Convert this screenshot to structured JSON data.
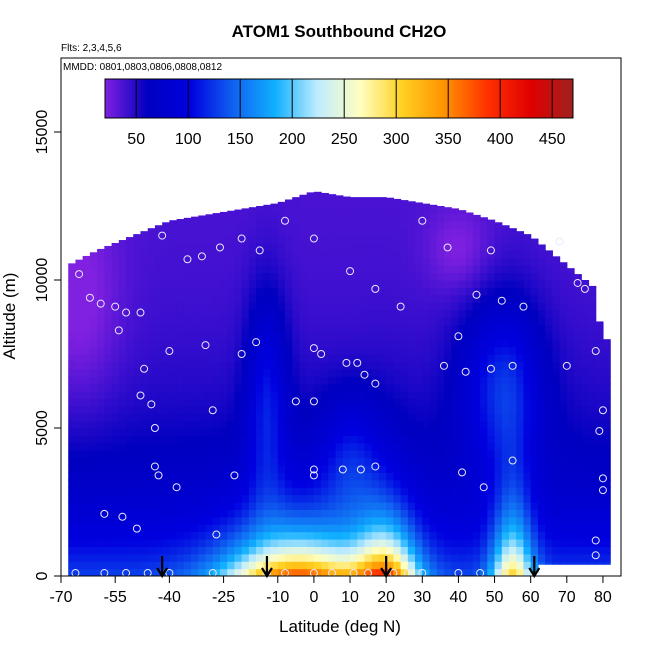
{
  "chart_data": {
    "type": "heatmap",
    "title": "ATOM1 Southbound CH2O",
    "flights_note": "Flts: 2,3,4,5,6",
    "dates_note": "MMDD: 0801,0803,0806,0808,0812",
    "xlabel": "Latitude (deg N)",
    "ylabel": "Altitude (m)",
    "xlim": [
      -70,
      85
    ],
    "ylim": [
      0,
      17500
    ],
    "x_ticks": [
      -70,
      -55,
      -40,
      -25,
      -10,
      0,
      10,
      20,
      30,
      40,
      50,
      60,
      70,
      80
    ],
    "y_ticks": [
      0,
      5000,
      10000,
      15000
    ],
    "colorbar": {
      "range": [
        20,
        470
      ],
      "ticks": [
        50,
        100,
        150,
        200,
        250,
        300,
        350,
        400,
        450
      ],
      "colors": [
        "#8020e0",
        "#0000c0",
        "#0000e0",
        "#1060f0",
        "#10b0ff",
        "#c0ecff",
        "#ffffc0",
        "#ffd020",
        "#ff9000",
        "#ff3000",
        "#e00000",
        "#a02020"
      ]
    },
    "field": {
      "note": "gridded CH2O (pptv) binned by latitude and altitude",
      "lat_step": 5,
      "alt_step": 500,
      "top_altitude_by_latitude": [
        [
          -68,
          10500
        ],
        [
          -60,
          11000
        ],
        [
          -50,
          11500
        ],
        [
          -40,
          12000
        ],
        [
          -30,
          12200
        ],
        [
          -20,
          12400
        ],
        [
          -10,
          12600
        ],
        [
          0,
          13000
        ],
        [
          10,
          12800
        ],
        [
          20,
          12800
        ],
        [
          30,
          12600
        ],
        [
          40,
          12400
        ],
        [
          50,
          12000
        ],
        [
          60,
          11500
        ],
        [
          70,
          10500
        ],
        [
          77,
          9800
        ],
        [
          80,
          8000
        ]
      ],
      "bottom_altitude_by_latitude": [
        [
          -68,
          0
        ],
        [
          60,
          0
        ],
        [
          63,
          400
        ],
        [
          80,
          400
        ]
      ]
    },
    "sample_points": [
      [
        -65,
        10200
      ],
      [
        -62,
        9400
      ],
      [
        -59,
        9200
      ],
      [
        -55,
        9100
      ],
      [
        -52,
        8900
      ],
      [
        -48,
        8900
      ],
      [
        -54,
        8300
      ],
      [
        -47,
        7000
      ],
      [
        -48,
        6100
      ],
      [
        -45,
        5800
      ],
      [
        -44,
        5000
      ],
      [
        -44,
        3700
      ],
      [
        -43,
        3400
      ],
      [
        -38,
        3000
      ],
      [
        -58,
        2100
      ],
      [
        -53,
        2000
      ],
      [
        -49,
        1600
      ],
      [
        -42,
        11500
      ],
      [
        -35,
        10700
      ],
      [
        -31,
        10800
      ],
      [
        -26,
        11100
      ],
      [
        -20,
        11400
      ],
      [
        -15,
        11000
      ],
      [
        -40,
        7600
      ],
      [
        -30,
        7800
      ],
      [
        -20,
        7500
      ],
      [
        -16,
        7900
      ],
      [
        -28,
        5600
      ],
      [
        -22,
        3400
      ],
      [
        -27,
        1400
      ],
      [
        -8,
        12000
      ],
      [
        0,
        11400
      ],
      [
        -5,
        5900
      ],
      [
        0,
        5900
      ],
      [
        0,
        7700
      ],
      [
        2,
        7500
      ],
      [
        0,
        3600
      ],
      [
        0,
        3400
      ],
      [
        9,
        7200
      ],
      [
        12,
        7200
      ],
      [
        14,
        6800
      ],
      [
        17,
        6500
      ],
      [
        10,
        10300
      ],
      [
        17,
        9700
      ],
      [
        8,
        3600
      ],
      [
        13,
        3600
      ],
      [
        17,
        3700
      ],
      [
        24,
        9100
      ],
      [
        30,
        12000
      ],
      [
        37,
        11100
      ],
      [
        40,
        8100
      ],
      [
        45,
        9500
      ],
      [
        36,
        7100
      ],
      [
        42,
        6900
      ],
      [
        49,
        11000
      ],
      [
        52,
        9300
      ],
      [
        58,
        9100
      ],
      [
        55,
        7100
      ],
      [
        49,
        7000
      ],
      [
        55,
        3900
      ],
      [
        41,
        3500
      ],
      [
        47,
        3000
      ],
      [
        68,
        11300
      ],
      [
        73,
        9900
      ],
      [
        75,
        9700
      ],
      [
        78,
        7600
      ],
      [
        70,
        7100
      ],
      [
        80,
        5600
      ],
      [
        79,
        4900
      ],
      [
        80,
        3300
      ],
      [
        80,
        2900
      ],
      [
        78,
        1200
      ],
      [
        78,
        700
      ],
      [
        -66,
        100
      ],
      [
        -58,
        100
      ],
      [
        -52,
        100
      ],
      [
        -46,
        100
      ],
      [
        -40,
        100
      ],
      [
        -20,
        100
      ],
      [
        -8,
        100
      ],
      [
        0,
        100
      ],
      [
        5,
        100
      ],
      [
        11,
        100
      ],
      [
        15,
        100
      ],
      [
        22,
        100
      ],
      [
        30,
        100
      ],
      [
        40,
        100
      ],
      [
        46,
        100
      ],
      [
        52,
        100
      ],
      [
        -28,
        100
      ],
      [
        -13,
        100
      ],
      [
        26,
        100
      ]
    ],
    "arrows_latitude": [
      -42,
      -13,
      20,
      61
    ]
  }
}
